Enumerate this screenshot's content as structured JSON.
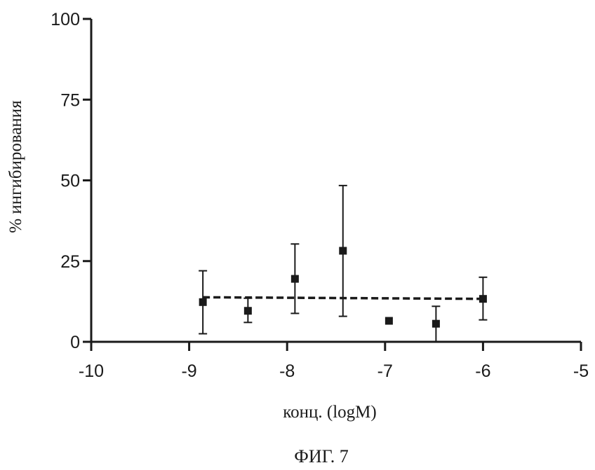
{
  "chart_data": {
    "type": "scatter",
    "title": "",
    "xlabel": "конц. (logM)",
    "ylabel": "% ингибирования",
    "xlim": [
      -10,
      -5
    ],
    "ylim": [
      0,
      100
    ],
    "xticks": [
      "-10",
      "-9",
      "-8",
      "-7",
      "-6",
      "-5"
    ],
    "yticks": [
      "0",
      "25",
      "50",
      "75",
      "100"
    ],
    "grid": false,
    "legend": "none",
    "caption": "ФИГ. 7",
    "points": [
      {
        "x": -8.86,
        "y": 12.3,
        "err_low": 2.5,
        "err_high": 22.0
      },
      {
        "x": -8.4,
        "y": 9.6,
        "err_low": 6.0,
        "err_high": 13.5
      },
      {
        "x": -7.92,
        "y": 19.5,
        "err_low": 8.8,
        "err_high": 30.3
      },
      {
        "x": -7.43,
        "y": 28.2,
        "err_low": 7.9,
        "err_high": 48.4
      },
      {
        "x": -6.96,
        "y": 6.5
      },
      {
        "x": -6.48,
        "y": 5.6,
        "err_low": 0.0,
        "err_high": 11.0
      },
      {
        "x": -6.0,
        "y": 13.3,
        "err_low": 6.8,
        "err_high": 20.0
      }
    ],
    "fit_line": {
      "style": "dashed",
      "x": [
        -8.86,
        -6.0
      ],
      "y": [
        13.8,
        13.3
      ]
    },
    "colors": {
      "ink": "#1a1a1a"
    }
  }
}
